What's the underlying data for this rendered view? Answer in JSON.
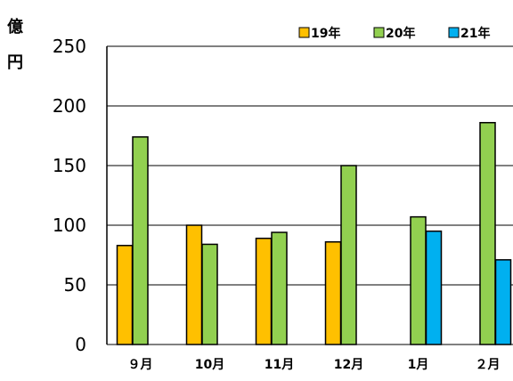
{
  "chart_data": {
    "type": "bar",
    "unit_label": [
      "億",
      "円"
    ],
    "categories": [
      "９月",
      "10月",
      "11月",
      "12月",
      "1月",
      "２月"
    ],
    "series": [
      {
        "name": "19年",
        "color": "#FFC000",
        "values": [
          83,
          100,
          89,
          86,
          null,
          null
        ]
      },
      {
        "name": "20年",
        "color": "#92D050",
        "values": [
          174,
          84,
          94,
          150,
          107,
          186
        ]
      },
      {
        "name": "21年",
        "color": "#00B0F0",
        "values": [
          null,
          null,
          null,
          null,
          95,
          71
        ]
      }
    ],
    "ylim": [
      0,
      250
    ],
    "yticks": [
      "0",
      "50",
      "100",
      "150",
      "200",
      "250"
    ],
    "grid": true,
    "legend_position": "top-right"
  }
}
